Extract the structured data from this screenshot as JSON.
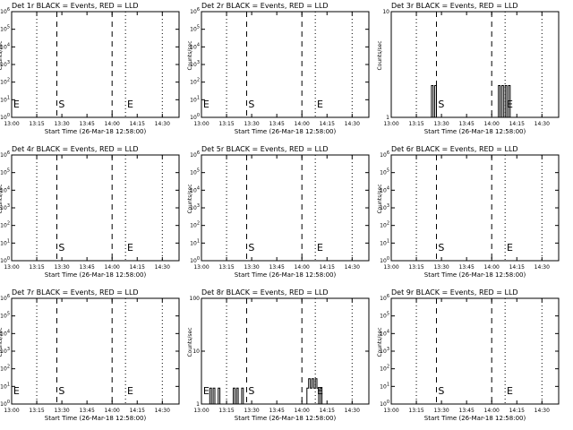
{
  "figure": {
    "background": "#ffffff",
    "foreground": "#000000"
  },
  "chart_data": [
    {
      "id": "det1",
      "type": "line",
      "title": "Det 1r BLACK = Events, RED = LLD",
      "xlabel": "Start Time (26-Mar-18 12:58:00)",
      "ylabel": "Counts/sec",
      "x_range": [
        "13:00",
        "14:40"
      ],
      "xticks": [
        "13:00",
        "13:15",
        "13:30",
        "13:45",
        "14:00",
        "14:15",
        "14:30"
      ],
      "ylog": true,
      "ylim_exp": [
        0,
        6
      ],
      "y_ticks": [
        {
          "label": "10",
          "exp": "0"
        },
        {
          "label": "10",
          "exp": "1"
        },
        {
          "label": "10",
          "exp": "2"
        },
        {
          "label": "10",
          "exp": "3"
        },
        {
          "label": "10",
          "exp": "4"
        },
        {
          "label": "10",
          "exp": "5"
        },
        {
          "label": "10",
          "exp": "6"
        }
      ],
      "dotted_lines": [
        "13:15",
        "14:08",
        "14:30"
      ],
      "dashed_lines": [
        "13:27",
        "14:00"
      ],
      "markers": [
        {
          "text": "E",
          "x": "13:01"
        },
        {
          "text": "S",
          "x": "13:28"
        },
        {
          "text": "E",
          "x": "14:09"
        }
      ],
      "series": []
    },
    {
      "id": "det2",
      "type": "line",
      "title": "Det 2r BLACK = Events, RED = LLD",
      "xlabel": "Start Time (26-Mar-18 12:58:00)",
      "ylabel": "Counts/sec",
      "x_range": [
        "13:00",
        "14:40"
      ],
      "xticks": [
        "13:00",
        "13:15",
        "13:30",
        "13:45",
        "14:00",
        "14:15",
        "14:30"
      ],
      "ylog": true,
      "ylim_exp": [
        0,
        6
      ],
      "y_ticks": [
        {
          "label": "10",
          "exp": "0"
        },
        {
          "label": "10",
          "exp": "1"
        },
        {
          "label": "10",
          "exp": "2"
        },
        {
          "label": "10",
          "exp": "3"
        },
        {
          "label": "10",
          "exp": "4"
        },
        {
          "label": "10",
          "exp": "5"
        },
        {
          "label": "10",
          "exp": "6"
        }
      ],
      "dotted_lines": [
        "13:15",
        "14:08",
        "14:30"
      ],
      "dashed_lines": [
        "13:27",
        "14:00"
      ],
      "markers": [
        {
          "text": "E",
          "x": "13:01"
        },
        {
          "text": "S",
          "x": "13:28"
        },
        {
          "text": "E",
          "x": "14:09"
        }
      ],
      "series": []
    },
    {
      "id": "det3",
      "type": "line",
      "title": "Det 3r BLACK = Events, RED = LLD",
      "xlabel": "Start Time (26-Mar-18 12:58:00)",
      "ylabel": "Counts/sec",
      "x_range": [
        "13:00",
        "14:40"
      ],
      "xticks": [
        "13:00",
        "13:15",
        "13:30",
        "13:45",
        "14:00",
        "14:15",
        "14:30"
      ],
      "ylog": true,
      "ylim": [
        1,
        10
      ],
      "y_ticks": [
        {
          "label": "1",
          "exp": ""
        },
        {
          "label": "10",
          "exp": ""
        }
      ],
      "dotted_lines": [
        "13:15",
        "14:08",
        "14:30"
      ],
      "dashed_lines": [
        "13:27",
        "14:00"
      ],
      "markers": [
        {
          "text": "S",
          "x": "13:28"
        },
        {
          "text": "E",
          "x": "14:09"
        }
      ],
      "series": [
        {
          "name": "Events",
          "points": [
            [
              "13:24",
              1
            ],
            [
              "13:24",
              2
            ],
            [
              "13:25",
              2
            ],
            [
              "13:25",
              1
            ],
            [
              "13:26",
              1
            ],
            [
              "13:26",
              2
            ],
            [
              "13:27",
              2
            ],
            [
              "13:27",
              1
            ],
            [
              "14:04",
              1
            ],
            [
              "14:04",
              2
            ],
            [
              "14:05",
              2
            ],
            [
              "14:05",
              1
            ],
            [
              "14:06",
              1
            ],
            [
              "14:06",
              2
            ],
            [
              "14:07",
              2
            ],
            [
              "14:07",
              1
            ],
            [
              "14:08",
              1
            ],
            [
              "14:08",
              2
            ],
            [
              "14:09",
              2
            ],
            [
              "14:09",
              1
            ],
            [
              "14:10",
              1
            ],
            [
              "14:10",
              2
            ],
            [
              "14:11",
              2
            ],
            [
              "14:11",
              1
            ]
          ]
        }
      ]
    },
    {
      "id": "det4",
      "type": "line",
      "title": "Det 4r BLACK = Events, RED = LLD",
      "xlabel": "Start Time (26-Mar-18 12:58:00)",
      "ylabel": "Counts/sec",
      "x_range": [
        "13:00",
        "14:40"
      ],
      "xticks": [
        "13:00",
        "13:15",
        "13:30",
        "13:45",
        "14:00",
        "14:15",
        "14:30"
      ],
      "ylog": true,
      "ylim_exp": [
        0,
        6
      ],
      "y_ticks": [
        {
          "label": "10",
          "exp": "0"
        },
        {
          "label": "10",
          "exp": "1"
        },
        {
          "label": "10",
          "exp": "2"
        },
        {
          "label": "10",
          "exp": "3"
        },
        {
          "label": "10",
          "exp": "4"
        },
        {
          "label": "10",
          "exp": "5"
        },
        {
          "label": "10",
          "exp": "6"
        }
      ],
      "dotted_lines": [
        "13:15",
        "14:08",
        "14:30"
      ],
      "dashed_lines": [
        "13:27",
        "14:00"
      ],
      "markers": [
        {
          "text": "S",
          "x": "13:28"
        },
        {
          "text": "E",
          "x": "14:09"
        }
      ],
      "series": []
    },
    {
      "id": "det5",
      "type": "line",
      "title": "Det 5r BLACK = Events, RED = LLD",
      "xlabel": "Start Time (26-Mar-18 12:58:00)",
      "ylabel": "Counts/sec",
      "x_range": [
        "13:00",
        "14:40"
      ],
      "xticks": [
        "13:00",
        "13:15",
        "13:30",
        "13:45",
        "14:00",
        "14:15",
        "14:30"
      ],
      "ylog": true,
      "ylim_exp": [
        0,
        6
      ],
      "y_ticks": [
        {
          "label": "10",
          "exp": "0"
        },
        {
          "label": "10",
          "exp": "1"
        },
        {
          "label": "10",
          "exp": "2"
        },
        {
          "label": "10",
          "exp": "3"
        },
        {
          "label": "10",
          "exp": "4"
        },
        {
          "label": "10",
          "exp": "5"
        },
        {
          "label": "10",
          "exp": "6"
        }
      ],
      "dotted_lines": [
        "13:15",
        "14:08",
        "14:30"
      ],
      "dashed_lines": [
        "13:27",
        "14:00"
      ],
      "markers": [
        {
          "text": "S",
          "x": "13:28"
        },
        {
          "text": "E",
          "x": "14:09"
        }
      ],
      "series": []
    },
    {
      "id": "det6",
      "type": "line",
      "title": "Det 6r BLACK = Events, RED = LLD",
      "xlabel": "Start Time (26-Mar-18 12:58:00)",
      "ylabel": "Counts/sec",
      "x_range": [
        "13:00",
        "14:40"
      ],
      "xticks": [
        "13:00",
        "13:15",
        "13:30",
        "13:45",
        "14:00",
        "14:15",
        "14:30"
      ],
      "ylog": true,
      "ylim_exp": [
        0,
        6
      ],
      "y_ticks": [
        {
          "label": "10",
          "exp": "0"
        },
        {
          "label": "10",
          "exp": "1"
        },
        {
          "label": "10",
          "exp": "2"
        },
        {
          "label": "10",
          "exp": "3"
        },
        {
          "label": "10",
          "exp": "4"
        },
        {
          "label": "10",
          "exp": "5"
        },
        {
          "label": "10",
          "exp": "6"
        }
      ],
      "dotted_lines": [
        "13:15",
        "14:08",
        "14:30"
      ],
      "dashed_lines": [
        "13:27",
        "14:00"
      ],
      "markers": [
        {
          "text": "S",
          "x": "13:28"
        },
        {
          "text": "E",
          "x": "14:09"
        }
      ],
      "series": []
    },
    {
      "id": "det7",
      "type": "line",
      "title": "Det 7r BLACK = Events, RED = LLD",
      "xlabel": "Start Time (26-Mar-18 12:58:00)",
      "ylabel": "Counts/sec",
      "x_range": [
        "13:00",
        "14:40"
      ],
      "xticks": [
        "13:00",
        "13:15",
        "13:30",
        "13:45",
        "14:00",
        "14:15",
        "14:30"
      ],
      "ylog": true,
      "ylim_exp": [
        0,
        6
      ],
      "y_ticks": [
        {
          "label": "10",
          "exp": "0"
        },
        {
          "label": "10",
          "exp": "1"
        },
        {
          "label": "10",
          "exp": "2"
        },
        {
          "label": "10",
          "exp": "3"
        },
        {
          "label": "10",
          "exp": "4"
        },
        {
          "label": "10",
          "exp": "5"
        },
        {
          "label": "10",
          "exp": "6"
        }
      ],
      "dotted_lines": [
        "13:15",
        "14:08",
        "14:30"
      ],
      "dashed_lines": [
        "13:27",
        "14:00"
      ],
      "markers": [
        {
          "text": "E",
          "x": "13:01"
        },
        {
          "text": "S",
          "x": "13:28"
        },
        {
          "text": "E",
          "x": "14:09"
        }
      ],
      "series": []
    },
    {
      "id": "det8",
      "type": "line",
      "title": "Det 8r BLACK = Events, RED = LLD",
      "xlabel": "Start Time (26-Mar-18 12:58:00)",
      "ylabel": "Counts/sec",
      "x_range": [
        "13:00",
        "14:40"
      ],
      "xticks": [
        "13:00",
        "13:15",
        "13:30",
        "13:45",
        "14:00",
        "14:15",
        "14:30"
      ],
      "ylog": true,
      "ylim": [
        1,
        100
      ],
      "y_ticks": [
        {
          "label": "1",
          "exp": ""
        },
        {
          "label": "10",
          "exp": ""
        },
        {
          "label": "100",
          "exp": ""
        }
      ],
      "dotted_lines": [
        "13:15",
        "14:08",
        "14:30"
      ],
      "dashed_lines": [
        "13:27",
        "14:00"
      ],
      "markers": [
        {
          "text": "E",
          "x": "13:01"
        },
        {
          "text": "S",
          "x": "13:28"
        },
        {
          "text": "E",
          "x": "14:09"
        }
      ],
      "series": [
        {
          "name": "Events",
          "points": [
            [
              "13:05",
              1
            ],
            [
              "13:05",
              2
            ],
            [
              "13:06",
              2
            ],
            [
              "13:06",
              1
            ],
            [
              "13:07",
              1
            ],
            [
              "13:07",
              2
            ],
            [
              "13:08",
              2
            ],
            [
              "13:08",
              1
            ],
            [
              "13:10",
              1
            ],
            [
              "13:10",
              2
            ],
            [
              "13:11",
              2
            ],
            [
              "13:11",
              1
            ],
            [
              "13:19",
              1
            ],
            [
              "13:19",
              2
            ],
            [
              "13:20",
              2
            ],
            [
              "13:20",
              1
            ],
            [
              "13:21",
              1
            ],
            [
              "13:21",
              2
            ],
            [
              "13:22",
              2
            ],
            [
              "13:22",
              1
            ],
            [
              "13:24",
              1
            ],
            [
              "13:24",
              2
            ],
            [
              "13:25",
              2
            ],
            [
              "13:25",
              1
            ],
            [
              "14:03",
              1
            ],
            [
              "14:03",
              2
            ],
            [
              "14:04",
              2
            ],
            [
              "14:04",
              3
            ],
            [
              "14:05",
              3
            ],
            [
              "14:05",
              2
            ],
            [
              "14:06",
              2
            ],
            [
              "14:06",
              3
            ],
            [
              "14:07",
              3
            ],
            [
              "14:07",
              2
            ],
            [
              "14:08",
              2
            ],
            [
              "14:08",
              3
            ],
            [
              "14:09",
              3
            ],
            [
              "14:09",
              2
            ],
            [
              "14:10",
              2
            ],
            [
              "14:10",
              1
            ],
            [
              "14:11",
              1
            ],
            [
              "14:11",
              2
            ],
            [
              "14:12",
              2
            ],
            [
              "14:12",
              1
            ]
          ]
        }
      ]
    },
    {
      "id": "det9",
      "type": "line",
      "title": "Det 9r BLACK = Events, RED = LLD",
      "xlabel": "Start Time (26-Mar-18 12:58:00)",
      "ylabel": "Counts/sec",
      "x_range": [
        "13:00",
        "14:40"
      ],
      "xticks": [
        "13:00",
        "13:15",
        "13:30",
        "13:45",
        "14:00",
        "14:15",
        "14:30"
      ],
      "ylog": true,
      "ylim_exp": [
        0,
        6
      ],
      "y_ticks": [
        {
          "label": "10",
          "exp": "0"
        },
        {
          "label": "10",
          "exp": "1"
        },
        {
          "label": "10",
          "exp": "2"
        },
        {
          "label": "10",
          "exp": "3"
        },
        {
          "label": "10",
          "exp": "4"
        },
        {
          "label": "10",
          "exp": "5"
        },
        {
          "label": "10",
          "exp": "6"
        }
      ],
      "dotted_lines": [
        "13:15",
        "14:08",
        "14:30"
      ],
      "dashed_lines": [
        "13:27",
        "14:00"
      ],
      "markers": [
        {
          "text": "S",
          "x": "13:28"
        },
        {
          "text": "E",
          "x": "14:09"
        }
      ],
      "series": []
    }
  ]
}
